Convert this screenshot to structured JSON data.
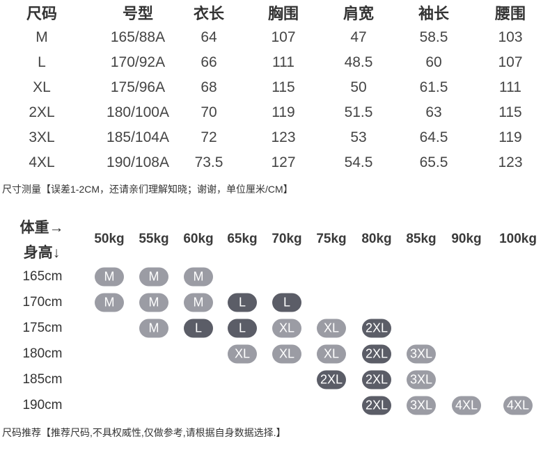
{
  "size_table": {
    "headers": [
      "尺码",
      "号型",
      "衣长",
      "胸围",
      "肩宽",
      "袖长",
      "腰围"
    ],
    "rows": [
      [
        "M",
        "165/88A",
        "64",
        "107",
        "47",
        "58.5",
        "103"
      ],
      [
        "L",
        "170/92A",
        "66",
        "111",
        "48.5",
        "60",
        "107"
      ],
      [
        "XL",
        "175/96A",
        "68",
        "115",
        "50",
        "61.5",
        "111"
      ],
      [
        "2XL",
        "180/100A",
        "70",
        "119",
        "51.5",
        "63",
        "115"
      ],
      [
        "3XL",
        "185/104A",
        "72",
        "123",
        "53",
        "64.5",
        "119"
      ],
      [
        "4XL",
        "190/108A",
        "73.5",
        "127",
        "54.5",
        "65.5",
        "123"
      ]
    ],
    "note": "尺寸测量【误差1-2CM，还请亲们理解知晓；谢谢，单位厘米/CM】"
  },
  "recommend": {
    "weight_label": "体重→",
    "height_label": "身高↓",
    "weights": [
      "50kg",
      "55kg",
      "60kg",
      "65kg",
      "70kg",
      "75kg",
      "80kg",
      "85kg",
      "90kg",
      "100kg"
    ],
    "heights": [
      "165cm",
      "170cm",
      "175cm",
      "180cm",
      "185cm",
      "190cm"
    ],
    "grid": [
      [
        "M",
        "M",
        "M",
        "",
        "",
        "",
        "",
        "",
        "",
        ""
      ],
      [
        "M",
        "M",
        "M",
        "L",
        "L",
        "",
        "",
        "",
        "",
        ""
      ],
      [
        "",
        "M",
        "L",
        "L",
        "XL",
        "XL",
        "2XL",
        "",
        "",
        ""
      ],
      [
        "",
        "",
        "",
        "XL",
        "XL",
        "XL",
        "2XL",
        "3XL",
        "",
        ""
      ],
      [
        "",
        "",
        "",
        "",
        "",
        "2XL",
        "2XL",
        "3XL",
        "",
        ""
      ],
      [
        "",
        "",
        "",
        "",
        "",
        "",
        "2XL",
        "3XL",
        "4XL",
        "4XL"
      ]
    ],
    "colors": {
      "light": "#9b9ca4",
      "dark": "#5b5d67"
    },
    "dark_sizes": [
      "L",
      "2XL"
    ],
    "note": "尺码推荐【推荐尺码,不具权威性,仅做参考,请根据自身数据选择.】"
  }
}
